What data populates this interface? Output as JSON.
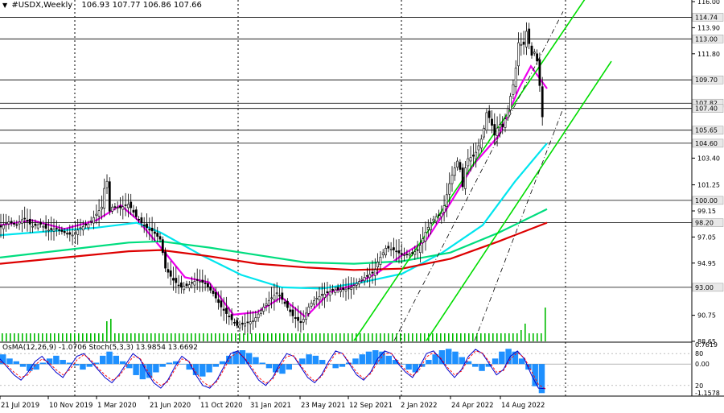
{
  "header": {
    "symbol": "#USDX,Weekly",
    "ohlc": "106.93 107.77 106.86 107.66"
  },
  "indicator": {
    "label": "OsMA(12,26,9) -1.0706  Stoch(5,3,3) 13.9854 13.6692",
    "axis_labels": [
      "0.7619",
      "80",
      "0.00",
      "20",
      "-1.1578"
    ]
  },
  "colors": {
    "candle": "#000000",
    "level_line": "#000000",
    "ma_fast": "#ee00ee",
    "ma_mid": "#00e5ee",
    "ma_slow_green": "#00dd7f",
    "ma_slow_red": "#dd0000",
    "channel": "#00dd00",
    "volume": "#00bb00",
    "osma": "#1e90ff",
    "stoch_main": "#0000cc",
    "stoch_signal": "#ff0000",
    "grid": "#000000"
  },
  "chart_data": {
    "type": "candlestick",
    "symbol": "#USDX",
    "timeframe": "Weekly",
    "ylim": [
      88.65,
      116.0
    ],
    "price_ticks": [
      116.0,
      113.9,
      111.8,
      109.7,
      107.82,
      107.4,
      105.65,
      104.6,
      103.4,
      101.25,
      100.0,
      99.15,
      98.2,
      97.05,
      94.95,
      93.0,
      90.75,
      88.65
    ],
    "x_labels": [
      "21 Jul 2019",
      "10 Nov 2019",
      "1 Mar 2020",
      "21 Jun 2020",
      "11 Oct 2020",
      "31 Jan 2021",
      "23 May 2021",
      "12 Sep 2021",
      "2 Jan 2022",
      "24 Apr 2022",
      "14 Aug 2022"
    ],
    "levels": [
      {
        "value": 114.74,
        "label": "114.74"
      },
      {
        "value": 113.0,
        "label": "113.00"
      },
      {
        "value": 109.7,
        "label": "109.70"
      },
      {
        "value": 107.82,
        "label": "107.82"
      },
      {
        "value": 107.4,
        "label": "107.40"
      },
      {
        "value": 105.65,
        "label": "105.65"
      },
      {
        "value": 104.6,
        "label": "104.60"
      },
      {
        "value": 100.0,
        "label": "100.00"
      },
      {
        "value": 98.2,
        "label": "98.20"
      },
      {
        "value": 93.0,
        "label": "93.00"
      }
    ],
    "price_path": [
      [
        0,
        97.8
      ],
      [
        10,
        98.3
      ],
      [
        20,
        98.0
      ],
      [
        30,
        98.6
      ],
      [
        40,
        97.9
      ],
      [
        50,
        98.1
      ],
      [
        60,
        97.6
      ],
      [
        70,
        97.7
      ],
      [
        80,
        97.4
      ],
      [
        90,
        97.2
      ],
      [
        100,
        97.8
      ],
      [
        110,
        98.1
      ],
      [
        120,
        98.9
      ],
      [
        128,
        99.6
      ],
      [
        132,
        102.8
      ],
      [
        135,
        99.0
      ],
      [
        140,
        99.5
      ],
      [
        150,
        99.4
      ],
      [
        160,
        99.7
      ],
      [
        170,
        98.6
      ],
      [
        180,
        97.9
      ],
      [
        190,
        97.5
      ],
      [
        200,
        96.8
      ],
      [
        205,
        94.6
      ],
      [
        215,
        93.6
      ],
      [
        225,
        93.0
      ],
      [
        235,
        93.2
      ],
      [
        245,
        93.6
      ],
      [
        255,
        93.3
      ],
      [
        265,
        92.5
      ],
      [
        275,
        91.4
      ],
      [
        285,
        90.6
      ],
      [
        295,
        89.9
      ],
      [
        305,
        90.1
      ],
      [
        315,
        90.3
      ],
      [
        325,
        91.2
      ],
      [
        335,
        92.0
      ],
      [
        345,
        92.6
      ],
      [
        355,
        91.6
      ],
      [
        365,
        90.6
      ],
      [
        375,
        90.1
      ],
      [
        385,
        91.6
      ],
      [
        395,
        92.2
      ],
      [
        405,
        92.5
      ],
      [
        415,
        92.8
      ],
      [
        425,
        92.8
      ],
      [
        435,
        92.9
      ],
      [
        445,
        93.4
      ],
      [
        455,
        93.9
      ],
      [
        465,
        94.2
      ],
      [
        470,
        95.1
      ],
      [
        480,
        96.2
      ],
      [
        490,
        96.0
      ],
      [
        500,
        95.6
      ],
      [
        510,
        95.7
      ],
      [
        520,
        96.0
      ],
      [
        530,
        97.6
      ],
      [
        540,
        98.6
      ],
      [
        550,
        99.0
      ],
      [
        560,
        101.7
      ],
      [
        570,
        103.4
      ],
      [
        575,
        101.0
      ],
      [
        580,
        103.3
      ],
      [
        590,
        103.6
      ],
      [
        600,
        105.2
      ],
      [
        605,
        107.1
      ],
      [
        610,
        106.4
      ],
      [
        615,
        105.2
      ],
      [
        620,
        106.2
      ],
      [
        625,
        105.9
      ],
      [
        630,
        107.0
      ],
      [
        635,
        108.5
      ],
      [
        640,
        109.9
      ],
      [
        645,
        113.0
      ],
      [
        650,
        112.2
      ],
      [
        655,
        113.8
      ],
      [
        660,
        111.6
      ],
      [
        665,
        112.0
      ],
      [
        670,
        110.5
      ],
      [
        673,
        106.3
      ],
      [
        677,
        107.7
      ]
    ],
    "moving_averages": [
      {
        "color": "ma_fast",
        "points": [
          [
            0,
            98.0
          ],
          [
            40,
            98.4
          ],
          [
            80,
            97.7
          ],
          [
            120,
            98.4
          ],
          [
            150,
            99.6
          ],
          [
            170,
            98.5
          ],
          [
            200,
            96.2
          ],
          [
            230,
            93.8
          ],
          [
            260,
            93.4
          ],
          [
            290,
            90.8
          ],
          [
            320,
            91.0
          ],
          [
            350,
            92.2
          ],
          [
            380,
            90.6
          ],
          [
            410,
            92.6
          ],
          [
            440,
            93.2
          ],
          [
            470,
            94.2
          ],
          [
            500,
            95.6
          ],
          [
            530,
            96.8
          ],
          [
            560,
            99.8
          ],
          [
            590,
            103.0
          ],
          [
            620,
            105.2
          ],
          [
            645,
            109.0
          ],
          [
            660,
            110.8
          ],
          [
            680,
            109.0
          ]
        ]
      },
      {
        "color": "ma_mid",
        "points": [
          [
            0,
            97.2
          ],
          [
            60,
            97.5
          ],
          [
            120,
            97.8
          ],
          [
            170,
            98.2
          ],
          [
            200,
            97.4
          ],
          [
            250,
            95.6
          ],
          [
            300,
            94.0
          ],
          [
            350,
            93.0
          ],
          [
            400,
            92.9
          ],
          [
            450,
            93.4
          ],
          [
            500,
            94.1
          ],
          [
            550,
            95.8
          ],
          [
            600,
            98.0
          ],
          [
            640,
            101.5
          ],
          [
            680,
            104.6
          ]
        ]
      },
      {
        "color": "ma_slow_green",
        "points": [
          [
            0,
            95.4
          ],
          [
            80,
            96.0
          ],
          [
            160,
            96.6
          ],
          [
            200,
            96.7
          ],
          [
            260,
            96.2
          ],
          [
            320,
            95.6
          ],
          [
            380,
            95.0
          ],
          [
            440,
            94.9
          ],
          [
            500,
            95.1
          ],
          [
            560,
            95.8
          ],
          [
            620,
            97.4
          ],
          [
            680,
            99.3
          ]
        ]
      },
      {
        "color": "ma_slow_red",
        "points": [
          [
            0,
            94.9
          ],
          [
            80,
            95.4
          ],
          [
            160,
            95.9
          ],
          [
            200,
            96.0
          ],
          [
            260,
            95.5
          ],
          [
            320,
            94.9
          ],
          [
            380,
            94.6
          ],
          [
            440,
            94.4
          ],
          [
            500,
            94.5
          ],
          [
            560,
            95.3
          ],
          [
            620,
            96.7
          ],
          [
            680,
            98.2
          ]
        ]
      }
    ],
    "channels": [
      {
        "style": "solid",
        "x": [
          440,
          748
        ],
        "y": [
          88.7,
          118.2
        ]
      },
      {
        "style": "solid",
        "x": [
          530,
          760
        ],
        "y": [
          88.7,
          111.2
        ]
      },
      {
        "style": "dashdot",
        "x": [
          490,
          700
        ],
        "y": [
          88.7,
          115.2
        ]
      }
    ],
    "indicator_ylim": [
      -1.1578,
      0.7619
    ],
    "osma_values": [
      0.35,
      0.2,
      0.1,
      -0.1,
      -0.25,
      -0.2,
      0.05,
      0.2,
      0.3,
      0.15,
      0.05,
      -0.05,
      -0.2,
      -0.1,
      0.05,
      0.3,
      0.45,
      0.3,
      0.1,
      -0.15,
      -0.4,
      -0.55,
      -0.5,
      -0.3,
      -0.1,
      0.05,
      0.1,
      0.0,
      -0.2,
      -0.4,
      -0.45,
      -0.3,
      -0.1,
      0.1,
      0.3,
      0.45,
      0.5,
      0.4,
      0.25,
      0.05,
      -0.15,
      -0.3,
      -0.35,
      -0.2,
      0.0,
      0.2,
      0.35,
      0.3,
      0.15,
      0.0,
      -0.15,
      -0.1,
      0.05,
      0.2,
      0.35,
      0.45,
      0.5,
      0.45,
      0.3,
      0.15,
      0.0,
      -0.2,
      -0.3,
      -0.1,
      0.15,
      0.35,
      0.5,
      0.55,
      0.45,
      0.25,
      0.1,
      -0.1,
      -0.25,
      -0.1,
      0.2,
      0.45,
      0.55,
      0.45,
      0.2,
      -0.2,
      -0.8,
      -1.05
    ],
    "stoch_main": [
      70,
      55,
      40,
      30,
      45,
      65,
      75,
      60,
      45,
      35,
      55,
      75,
      80,
      65,
      50,
      35,
      25,
      40,
      60,
      80,
      70,
      45,
      25,
      15,
      30,
      55,
      75,
      65,
      40,
      20,
      15,
      30,
      55,
      80,
      85,
      70,
      50,
      30,
      20,
      35,
      60,
      80,
      75,
      55,
      35,
      25,
      40,
      65,
      85,
      80,
      60,
      40,
      30,
      45,
      70,
      85,
      80,
      60,
      45,
      35,
      55,
      80,
      85,
      70,
      50,
      35,
      50,
      75,
      88,
      80,
      60,
      40,
      50,
      75,
      85,
      70,
      40,
      15,
      14
    ],
    "stoch_signal": [
      65,
      58,
      45,
      35,
      40,
      58,
      70,
      63,
      50,
      40,
      50,
      68,
      78,
      68,
      53,
      40,
      30,
      37,
      55,
      74,
      72,
      50,
      30,
      20,
      27,
      50,
      70,
      66,
      45,
      27,
      18,
      27,
      50,
      74,
      82,
      72,
      54,
      35,
      24,
      32,
      55,
      75,
      76,
      58,
      40,
      28,
      37,
      60,
      80,
      80,
      63,
      45,
      33,
      42,
      64,
      80,
      80,
      63,
      49,
      38,
      50,
      74,
      82,
      72,
      54,
      40,
      47,
      70,
      85,
      81,
      64,
      45,
      48,
      70,
      82,
      72,
      47,
      22,
      13.7
    ],
    "volume_bars": [
      [
        130,
        25
      ],
      [
        135,
        28
      ],
      [
        645,
        14
      ],
      [
        650,
        22
      ],
      [
        675,
        42
      ]
    ]
  }
}
